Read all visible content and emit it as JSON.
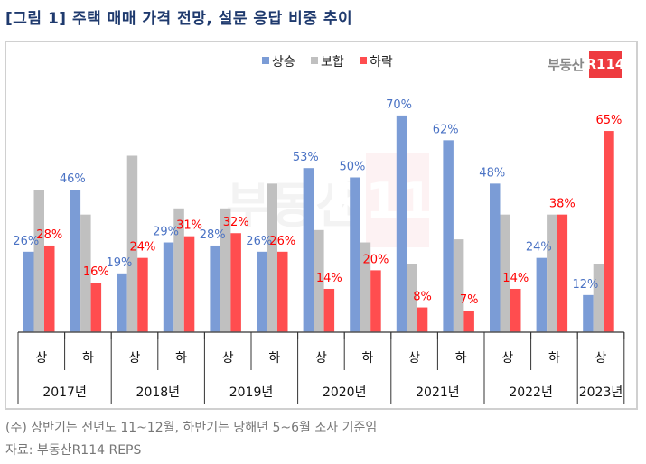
{
  "title": "[그림 1] 주택 매매 가격 전망, 설문 응답 비중 추이",
  "logo": {
    "text": "부동산",
    "badge": "R114"
  },
  "footnotes": [
    "(주) 상반기는 전년도 11~12월, 하반기는 당해년 5~6월 조사 기준임",
    "자료: 부동산R114 REPS"
  ],
  "chart_data": {
    "type": "bar",
    "title": "주택 매매 가격 전망, 설문 응답 비중 추이",
    "xlabel": "",
    "ylabel": "",
    "ylim": [
      0,
      75
    ],
    "grid": false,
    "legend_position": "top-center",
    "categories": [
      "2017 상",
      "2017 하",
      "2018 상",
      "2018 하",
      "2019 상",
      "2019 하",
      "2020 상",
      "2020 하",
      "2021 상",
      "2021 하",
      "2022 상",
      "2022 하",
      "2023 상"
    ],
    "half_labels": [
      "상",
      "하",
      "상",
      "하",
      "상",
      "하",
      "상",
      "하",
      "상",
      "하",
      "상",
      "하",
      "상"
    ],
    "years": [
      {
        "label": "2017년",
        "span": 2
      },
      {
        "label": "2018년",
        "span": 2
      },
      {
        "label": "2019년",
        "span": 2
      },
      {
        "label": "2020년",
        "span": 2
      },
      {
        "label": "2021년",
        "span": 2
      },
      {
        "label": "2022년",
        "span": 2
      },
      {
        "label": "2023년",
        "span": 1
      }
    ],
    "series": [
      {
        "name": "상승",
        "color": "#7b9cd6",
        "label_color": "#4a72c4",
        "labeled": true,
        "values": [
          26,
          46,
          19,
          29,
          28,
          26,
          53,
          50,
          70,
          62,
          48,
          24,
          12
        ]
      },
      {
        "name": "보합",
        "color": "#c0c0c0",
        "label_color": "#888888",
        "labeled": false,
        "values": [
          46,
          38,
          57,
          40,
          40,
          48,
          33,
          29,
          22,
          30,
          38,
          38,
          22
        ]
      },
      {
        "name": "하락",
        "color": "#ff4d4f",
        "label_color": "#ff0000",
        "labeled": true,
        "values": [
          28,
          16,
          24,
          31,
          32,
          26,
          14,
          20,
          8,
          7,
          14,
          38,
          65
        ]
      }
    ],
    "value_suffix": "%"
  }
}
